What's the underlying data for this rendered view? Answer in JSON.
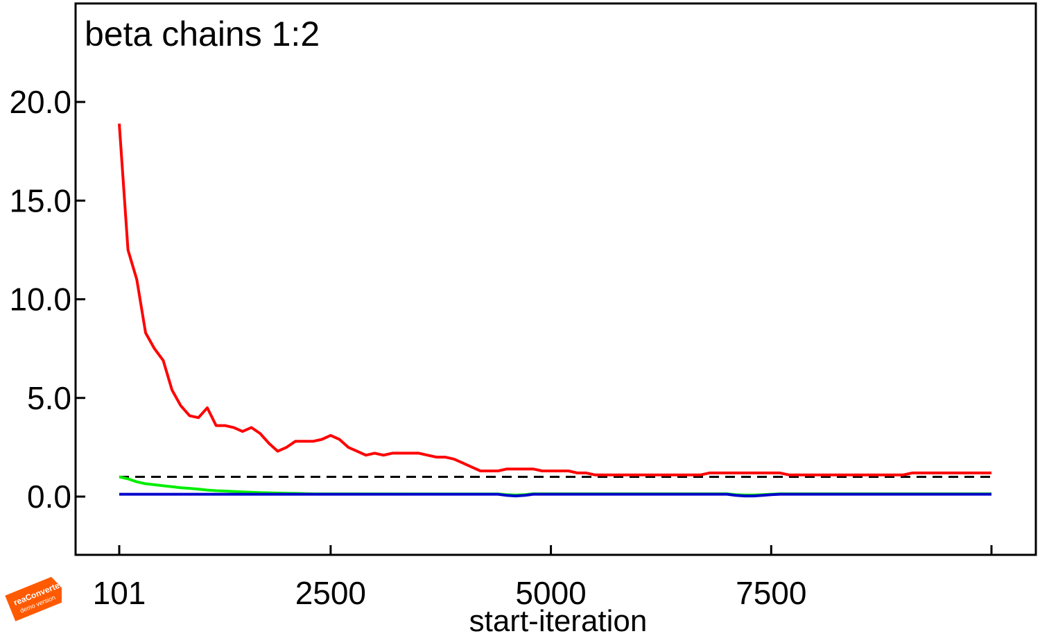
{
  "chart_data": {
    "type": "line",
    "title": "beta chains 1:2",
    "xlabel": "start-iteration",
    "ylabel": "",
    "xlim": [
      101,
      10200
    ],
    "ylim": [
      -3.0,
      25.0
    ],
    "x_ticks": [
      {
        "value": 101,
        "label": "101"
      },
      {
        "value": 2500,
        "label": "2500"
      },
      {
        "value": 5000,
        "label": "5000"
      },
      {
        "value": 7500,
        "label": "7500"
      },
      {
        "value": 10000,
        "label": ""
      }
    ],
    "y_ticks": [
      {
        "value": 0,
        "label": "0.0"
      },
      {
        "value": 5,
        "label": "5.0"
      },
      {
        "value": 10,
        "label": "10.0"
      },
      {
        "value": 15,
        "label": "15.0"
      },
      {
        "value": 20,
        "label": "20.0"
      }
    ],
    "grid": false,
    "reference_line": {
      "y": 1.0,
      "color": "#000000",
      "style": "dashed"
    },
    "series": [
      {
        "color": "#ff0000",
        "x": [
          101,
          200,
          300,
          400,
          500,
          600,
          700,
          800,
          900,
          1000,
          1100,
          1200,
          1300,
          1400,
          1500,
          1600,
          1700,
          1800,
          1900,
          2000,
          2100,
          2200,
          2300,
          2400,
          2500,
          2600,
          2700,
          2800,
          2900,
          3000,
          3100,
          3200,
          3300,
          3400,
          3500,
          3600,
          3700,
          3800,
          3900,
          4000,
          4100,
          4200,
          4300,
          4400,
          4500,
          4600,
          4700,
          4800,
          4900,
          5000,
          5100,
          5200,
          5300,
          5400,
          5500,
          5600,
          5700,
          5800,
          5900,
          6000,
          6100,
          6200,
          6300,
          6400,
          6500,
          6600,
          6700,
          6800,
          6900,
          7000,
          7100,
          7200,
          7300,
          7400,
          7500,
          7600,
          7700,
          7800,
          7900,
          8000,
          8100,
          8200,
          8300,
          8400,
          8500,
          8600,
          8700,
          8800,
          8900,
          9000,
          9100,
          9200,
          9300,
          9400,
          9500,
          9600,
          9700,
          9800,
          9900,
          10000
        ],
        "values": [
          18.9,
          12.5,
          11.0,
          8.3,
          7.5,
          6.9,
          5.4,
          4.6,
          4.1,
          4.0,
          4.5,
          3.6,
          3.6,
          3.5,
          3.3,
          3.5,
          3.2,
          2.7,
          2.3,
          2.5,
          2.8,
          2.8,
          2.8,
          2.9,
          3.1,
          2.9,
          2.5,
          2.3,
          2.1,
          2.2,
          2.1,
          2.2,
          2.2,
          2.2,
          2.2,
          2.1,
          2.0,
          2.0,
          1.9,
          1.7,
          1.5,
          1.3,
          1.3,
          1.3,
          1.4,
          1.4,
          1.4,
          1.4,
          1.3,
          1.3,
          1.3,
          1.3,
          1.2,
          1.2,
          1.1,
          1.1,
          1.1,
          1.1,
          1.1,
          1.1,
          1.1,
          1.1,
          1.1,
          1.1,
          1.1,
          1.1,
          1.1,
          1.2,
          1.2,
          1.2,
          1.2,
          1.2,
          1.2,
          1.2,
          1.2,
          1.2,
          1.1,
          1.1,
          1.1,
          1.1,
          1.1,
          1.1,
          1.1,
          1.1,
          1.1,
          1.1,
          1.1,
          1.1,
          1.1,
          1.1,
          1.2,
          1.2,
          1.2,
          1.2,
          1.2,
          1.2,
          1.2,
          1.2,
          1.2,
          1.2
        ]
      },
      {
        "color": "#00ee00",
        "x": [
          101,
          200,
          300,
          400,
          500,
          600,
          700,
          800,
          900,
          1000,
          1100,
          1200,
          1300,
          1400,
          1500,
          1600,
          1700,
          1800,
          1900,
          2000,
          2100,
          2200,
          2300,
          4400,
          4500,
          4600,
          4700,
          4800,
          7000,
          7100,
          7200,
          7300,
          7400,
          7500,
          7600,
          10000
        ],
        "values": [
          1.0,
          0.9,
          0.75,
          0.65,
          0.6,
          0.55,
          0.5,
          0.45,
          0.42,
          0.38,
          0.33,
          0.3,
          0.28,
          0.26,
          0.24,
          0.22,
          0.2,
          0.19,
          0.18,
          0.17,
          0.16,
          0.15,
          0.14,
          0.13,
          0.1,
          0.08,
          0.1,
          0.14,
          0.14,
          0.1,
          0.08,
          0.08,
          0.1,
          0.12,
          0.14,
          0.14
        ]
      },
      {
        "color": "#0000cc",
        "x": [
          101,
          4400,
          4500,
          4600,
          4700,
          4800,
          7000,
          7100,
          7200,
          7300,
          7400,
          7500,
          7600,
          10000
        ],
        "values": [
          0.12,
          0.12,
          0.06,
          0.03,
          0.06,
          0.12,
          0.12,
          0.06,
          0.03,
          0.03,
          0.06,
          0.1,
          0.12,
          0.12
        ]
      }
    ]
  },
  "watermark": {
    "line1": "reaConverter",
    "line2": "demo version",
    "color": "#ff5a00"
  }
}
